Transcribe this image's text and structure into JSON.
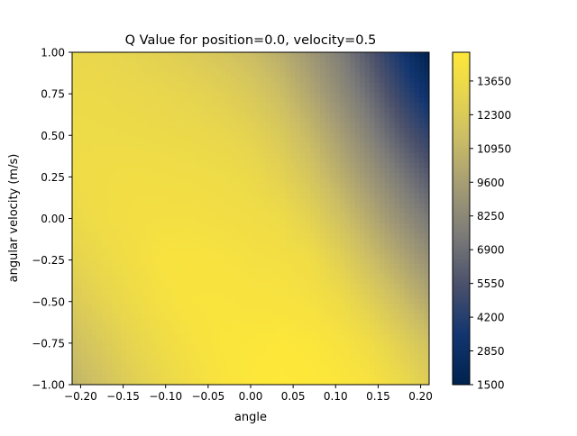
{
  "chart_data": {
    "type": "heatmap",
    "title": "Q Value for position=0.0, velocity=0.5",
    "xlabel": "angle",
    "ylabel": "angular velocity (m/s)",
    "xlim": [
      -0.21,
      0.21
    ],
    "ylim": [
      -1.0,
      1.0
    ],
    "x_ticks": [
      -0.2,
      -0.15,
      -0.1,
      -0.05,
      0.0,
      0.05,
      0.1,
      0.15,
      0.2
    ],
    "x_tick_labels": [
      "−0.20",
      "−0.15",
      "−0.10",
      "−0.05",
      "0.00",
      "0.05",
      "0.10",
      "0.15",
      "0.20"
    ],
    "y_ticks": [
      -1.0,
      -0.75,
      -0.5,
      -0.25,
      0.0,
      0.25,
      0.5,
      0.75,
      1.0
    ],
    "y_tick_labels": [
      "−1.00",
      "−0.75",
      "−0.50",
      "−0.25",
      "0.00",
      "0.25",
      "0.50",
      "0.75",
      "1.00"
    ],
    "colormap": "cividis",
    "colorbar": {
      "min": 1500,
      "max": 14800,
      "ticks": [
        1500,
        2850,
        4200,
        5550,
        6900,
        8250,
        9600,
        10950,
        12300,
        13650
      ],
      "tick_labels": [
        "1500",
        "2850",
        "4200",
        "5550",
        "6900",
        "8250",
        "9600",
        "10950",
        "12300",
        "13650"
      ]
    },
    "grid": false,
    "x": [
      -0.21,
      -0.175,
      -0.14,
      -0.105,
      -0.07,
      -0.035,
      0.0,
      0.035,
      0.07,
      0.105,
      0.14,
      0.175,
      0.21
    ],
    "y": [
      1.0,
      0.75,
      0.5,
      0.25,
      0.0,
      -0.25,
      -0.5,
      -0.75,
      -1.0
    ],
    "z": [
      [
        13350,
        13250,
        13050,
        12800,
        12450,
        12000,
        11400,
        10500,
        9200,
        7700,
        5800,
        3700,
        1500
      ],
      [
        13550,
        13500,
        13400,
        13250,
        13050,
        12750,
        12250,
        11400,
        10100,
        8500,
        6800,
        4800,
        3000
      ],
      [
        13650,
        13650,
        13600,
        13550,
        13450,
        13300,
        12950,
        12250,
        11100,
        9600,
        7900,
        6100,
        4500
      ],
      [
        13700,
        13800,
        13900,
        13850,
        13800,
        13700,
        13500,
        12950,
        12000,
        10600,
        9100,
        7500,
        6000
      ],
      [
        13500,
        13800,
        14000,
        14050,
        14050,
        13950,
        13850,
        13650,
        12900,
        11700,
        10300,
        8800,
        7400
      ],
      [
        13000,
        13500,
        13900,
        14300,
        14350,
        14250,
        14100,
        14050,
        13800,
        12800,
        11500,
        10200,
        8800
      ],
      [
        12300,
        13000,
        13600,
        14100,
        14400,
        14450,
        14350,
        14300,
        14150,
        13700,
        12700,
        11500,
        10200
      ],
      [
        11500,
        12300,
        13100,
        13700,
        14200,
        14500,
        14600,
        14700,
        14600,
        14300,
        13800,
        12800,
        11700
      ],
      [
        10800,
        11700,
        12600,
        13300,
        13900,
        14400,
        14700,
        14800,
        14750,
        14600,
        14300,
        13600,
        12600
      ]
    ]
  }
}
